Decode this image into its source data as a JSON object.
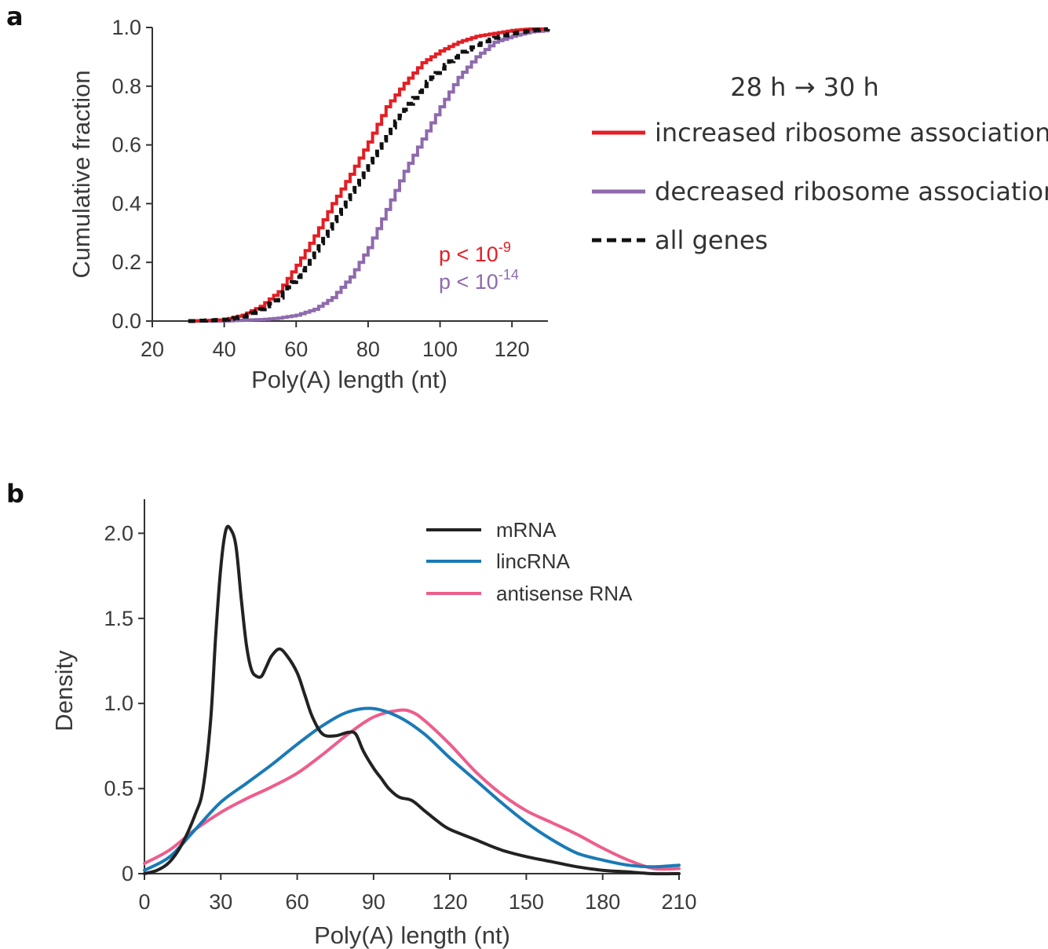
{
  "chart_data": [
    {
      "panel": "a",
      "type": "line",
      "title": "",
      "xlabel": "Poly(A) length (nt)",
      "ylabel": "Cumulative fraction",
      "xlim": [
        20,
        130
      ],
      "ylim": [
        0,
        1.0
      ],
      "xticks": [
        20,
        40,
        60,
        80,
        100,
        120
      ],
      "yticks": [
        0.0,
        0.2,
        0.4,
        0.6,
        0.8,
        1.0
      ],
      "ytick_labels": [
        "0.0",
        "0.2",
        "0.4",
        "0.6",
        "0.8",
        "1.0"
      ],
      "legend_title": "28 h → 30 h",
      "legend_position": "right",
      "series": [
        {
          "name": "increased ribosome association",
          "color": "#e31e24",
          "style": "solid",
          "x": [
            30,
            40,
            45,
            50,
            55,
            60,
            65,
            70,
            75,
            80,
            85,
            90,
            95,
            100,
            105,
            110,
            115,
            120,
            125,
            130
          ],
          "y": [
            0.0,
            0.005,
            0.02,
            0.05,
            0.1,
            0.19,
            0.29,
            0.4,
            0.5,
            0.61,
            0.73,
            0.81,
            0.88,
            0.92,
            0.95,
            0.97,
            0.98,
            0.99,
            0.995,
            0.995
          ]
        },
        {
          "name": "decreased ribosome association",
          "color": "#8e6aad",
          "style": "solid",
          "x": [
            30,
            40,
            45,
            50,
            55,
            60,
            65,
            70,
            75,
            80,
            85,
            90,
            95,
            100,
            105,
            110,
            115,
            120,
            125,
            130
          ],
          "y": [
            0.0,
            0.0,
            0.003,
            0.005,
            0.01,
            0.02,
            0.04,
            0.08,
            0.15,
            0.25,
            0.38,
            0.51,
            0.62,
            0.73,
            0.83,
            0.9,
            0.95,
            0.97,
            0.985,
            0.99
          ]
        },
        {
          "name": "all genes",
          "color": "#111111",
          "style": "dashed",
          "x": [
            30,
            40,
            45,
            50,
            55,
            60,
            65,
            70,
            75,
            80,
            85,
            90,
            95,
            100,
            105,
            110,
            115,
            120,
            125,
            130
          ],
          "y": [
            0.0,
            0.005,
            0.015,
            0.04,
            0.08,
            0.15,
            0.24,
            0.34,
            0.44,
            0.54,
            0.64,
            0.72,
            0.8,
            0.86,
            0.91,
            0.94,
            0.965,
            0.98,
            0.99,
            0.995
          ]
        }
      ],
      "annotations": [
        {
          "text": "p < 10",
          "sup": "-9",
          "color": "#e31e24"
        },
        {
          "text": "p < 10",
          "sup": "-14",
          "color": "#8e6aad"
        }
      ]
    },
    {
      "panel": "b",
      "type": "line",
      "title": "",
      "xlabel": "Poly(A) length (nt)",
      "ylabel": "Density",
      "xlim": [
        0,
        210
      ],
      "ylim": [
        0,
        2.2
      ],
      "xticks": [
        0,
        30,
        60,
        90,
        120,
        150,
        180,
        210
      ],
      "yticks": [
        0,
        0.5,
        1.0,
        1.5,
        2.0
      ],
      "ytick_labels": [
        "0",
        "0.5",
        "1.0",
        "1.5",
        "2.0"
      ],
      "legend_position": "top-right",
      "series": [
        {
          "name": "mRNA",
          "color": "#222222",
          "x": [
            0,
            5,
            10,
            15,
            20,
            23,
            26,
            28,
            30,
            32,
            34,
            36,
            38,
            40,
            42,
            44,
            46,
            48,
            50,
            53,
            56,
            60,
            63,
            66,
            70,
            75,
            80,
            83,
            86,
            90,
            93,
            96,
            100,
            105,
            110,
            115,
            120,
            130,
            140,
            150,
            160,
            170,
            180,
            190,
            200,
            210
          ],
          "y": [
            0.0,
            0.02,
            0.07,
            0.18,
            0.35,
            0.5,
            0.9,
            1.4,
            1.8,
            2.02,
            2.02,
            1.92,
            1.62,
            1.35,
            1.2,
            1.16,
            1.16,
            1.22,
            1.28,
            1.32,
            1.28,
            1.18,
            1.05,
            0.92,
            0.82,
            0.81,
            0.83,
            0.82,
            0.72,
            0.62,
            0.56,
            0.5,
            0.45,
            0.43,
            0.37,
            0.31,
            0.26,
            0.2,
            0.14,
            0.1,
            0.07,
            0.04,
            0.02,
            0.01,
            0.0,
            0.0
          ]
        },
        {
          "name": "lincRNA",
          "color": "#1a7ab6",
          "x": [
            0,
            10,
            20,
            30,
            40,
            50,
            60,
            70,
            80,
            90,
            100,
            110,
            120,
            130,
            140,
            150,
            160,
            170,
            180,
            190,
            200,
            210
          ],
          "y": [
            0.02,
            0.1,
            0.26,
            0.42,
            0.53,
            0.64,
            0.76,
            0.87,
            0.95,
            0.97,
            0.92,
            0.82,
            0.68,
            0.55,
            0.42,
            0.3,
            0.2,
            0.12,
            0.08,
            0.05,
            0.04,
            0.05
          ]
        },
        {
          "name": "antisense RNA",
          "color": "#ee5d8c",
          "x": [
            0,
            10,
            20,
            30,
            40,
            50,
            60,
            70,
            80,
            90,
            100,
            105,
            110,
            120,
            130,
            140,
            150,
            160,
            170,
            180,
            190,
            200,
            210
          ],
          "y": [
            0.06,
            0.14,
            0.26,
            0.36,
            0.44,
            0.51,
            0.59,
            0.7,
            0.82,
            0.92,
            0.96,
            0.95,
            0.9,
            0.76,
            0.6,
            0.47,
            0.37,
            0.3,
            0.23,
            0.15,
            0.08,
            0.03,
            0.03
          ]
        }
      ]
    }
  ],
  "panel_a": {
    "letter": "a",
    "legend_title": "28 h → 30 h",
    "legend_items": [
      "increased ribosome association",
      "decreased ribosome association",
      "all genes"
    ]
  },
  "panel_b": {
    "letter": "b",
    "legend_items": [
      "mRNA",
      "lincRNA",
      "antisense RNA"
    ]
  }
}
